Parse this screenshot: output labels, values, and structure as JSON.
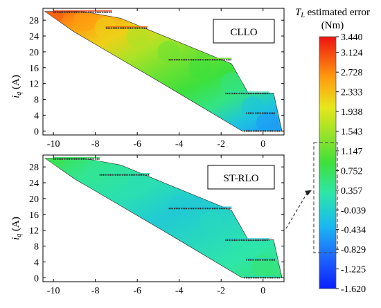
{
  "chart_data": [
    {
      "type": "heatmap",
      "title": "",
      "series_label": "CLLO",
      "xlabel": "",
      "ylabel": "i_q (A)",
      "xlim": [
        -10.5,
        1.0
      ],
      "ylim": [
        -1,
        31
      ],
      "xticks": [
        "-10",
        "-8",
        "-6",
        "-4",
        "-2",
        "0"
      ],
      "yticks": [
        "0",
        "4",
        "8",
        "12",
        "16",
        "20",
        "24",
        "28"
      ],
      "xtick_values": [
        -10,
        -8,
        -6,
        -4,
        -2,
        0
      ],
      "ytick_values": [
        0,
        4,
        8,
        12,
        16,
        20,
        24,
        28
      ],
      "region_vertices": [
        [
          -10.4,
          30.2
        ],
        [
          -8.6,
          30.2
        ],
        [
          -6.8,
          28.5
        ],
        [
          -4.5,
          23.5
        ],
        [
          -1.5,
          17
        ],
        [
          -0.7,
          9.5
        ],
        [
          0.5,
          9.6
        ],
        [
          0.9,
          0
        ],
        [
          -1.0,
          0
        ],
        [
          -4.8,
          12
        ],
        [
          -9.0,
          25
        ]
      ],
      "error_bands": [
        {
          "iq": 30,
          "id": [
            -10.0,
            -7.2
          ],
          "value": 3.2
        },
        {
          "iq": 26,
          "id": [
            -7.5,
            -5.5
          ],
          "value": 2.9
        },
        {
          "iq": 18,
          "id": [
            -4.5,
            -1.5
          ],
          "value": 1.3
        },
        {
          "iq": 9.5,
          "id": [
            -1.8,
            0.3
          ],
          "value": 0.2
        },
        {
          "iq": 4.5,
          "id": [
            -0.8,
            0.6
          ],
          "value": -0.3
        },
        {
          "iq": 0,
          "id": [
            -0.9,
            0.8
          ],
          "value": -0.5
        }
      ],
      "surface_samples": [
        {
          "id": -10.0,
          "iq": 30,
          "value": 3.0
        },
        {
          "id": -8.5,
          "iq": 28,
          "value": 2.6
        },
        {
          "id": -7.5,
          "iq": 26,
          "value": 2.2
        },
        {
          "id": -6.0,
          "iq": 24,
          "value": 1.6
        },
        {
          "id": -4.5,
          "iq": 20,
          "value": 1.2
        },
        {
          "id": -3.0,
          "iq": 16,
          "value": 0.9
        },
        {
          "id": -1.5,
          "iq": 12,
          "value": 0.5
        },
        {
          "id": -0.5,
          "iq": 6,
          "value": -0.2
        },
        {
          "id": 0.2,
          "iq": 2,
          "value": -0.6
        }
      ]
    },
    {
      "type": "heatmap",
      "title": "",
      "series_label": "ST-RLO",
      "xlabel": "",
      "ylabel": "i_q (A)",
      "xlim": [
        -10.5,
        1.0
      ],
      "ylim": [
        -1,
        31
      ],
      "xticks": [
        "-10",
        "-8",
        "-6",
        "-4",
        "-2",
        "0"
      ],
      "yticks": [
        "0",
        "4",
        "8",
        "12",
        "16",
        "20",
        "24",
        "28"
      ],
      "xtick_values": [
        -10,
        -8,
        -6,
        -4,
        -2,
        0
      ],
      "ytick_values": [
        0,
        4,
        8,
        12,
        16,
        20,
        24,
        28
      ],
      "region_vertices": [
        [
          -10.4,
          30.2
        ],
        [
          -8.6,
          30.2
        ],
        [
          -6.8,
          28.5
        ],
        [
          -4.5,
          23.5
        ],
        [
          -1.5,
          17
        ],
        [
          -0.7,
          9.5
        ],
        [
          0.5,
          9.6
        ],
        [
          0.9,
          0
        ],
        [
          -1.0,
          0
        ],
        [
          -4.8,
          12
        ],
        [
          -9.0,
          25
        ]
      ],
      "error_bands": [
        {
          "iq": 30,
          "id": [
            -10.0,
            -7.8
          ],
          "value": 0.7
        },
        {
          "iq": 26,
          "id": [
            -7.8,
            -5.4
          ],
          "value": 0.3
        },
        {
          "iq": 17.5,
          "id": [
            -4.5,
            -1.5
          ],
          "value": -0.2
        },
        {
          "iq": 9.5,
          "id": [
            -1.8,
            0.3
          ],
          "value": -0.1
        },
        {
          "iq": 4.5,
          "id": [
            -0.8,
            0.6
          ],
          "value": 0.0
        },
        {
          "iq": 0,
          "id": [
            -0.9,
            0.8
          ],
          "value": 0.1
        }
      ],
      "surface_samples": [
        {
          "id": -10.0,
          "iq": 30,
          "value": 0.8
        },
        {
          "id": -8.0,
          "iq": 27,
          "value": 0.4
        },
        {
          "id": -6.0,
          "iq": 23,
          "value": 0.2
        },
        {
          "id": -4.0,
          "iq": 18,
          "value": -0.1
        },
        {
          "id": -2.5,
          "iq": 14,
          "value": 0.1
        },
        {
          "id": -1.0,
          "iq": 8,
          "value": 0.3
        },
        {
          "id": 0.0,
          "iq": 3,
          "value": 0.6
        }
      ]
    }
  ],
  "colorbar": {
    "title": "T_L estimated error",
    "unit": "(Nm)",
    "min": -1.62,
    "max": 3.44,
    "ticks": [
      "3.440",
      "3.124",
      "2.728",
      "2.333",
      "1.938",
      "1.543",
      "1.147",
      "0.752",
      "0.357",
      "-0.039",
      "-0.434",
      "-0.829",
      "-1.225",
      "-1.620"
    ],
    "tick_values": [
      3.44,
      3.124,
      2.728,
      2.333,
      1.938,
      1.543,
      1.147,
      0.752,
      0.357,
      -0.039,
      -0.434,
      -0.829,
      -1.225,
      -1.62
    ],
    "highlight_range": [
      -0.829,
      1.147
    ]
  },
  "labels": {
    "iq_italic": "i",
    "iq_sub": "q",
    "iq_unit": " (A)",
    "tl_italic": "T",
    "tl_sub": "L",
    "tl_rest": " estimated error",
    "unit": "(Nm)",
    "top_legend": "CLLO",
    "bottom_legend": "ST-RLO"
  }
}
